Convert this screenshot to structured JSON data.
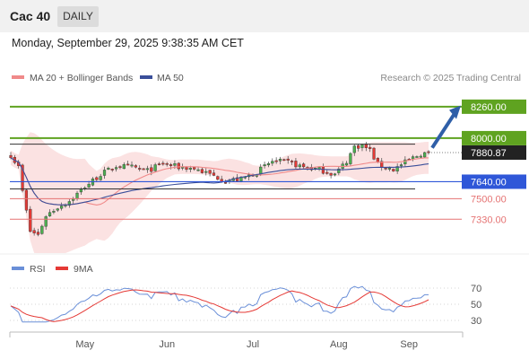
{
  "header": {
    "title": "Cac 40",
    "interval": "DAILY"
  },
  "timestamp": "Monday, September 29, 2025 9:38:35 AM CET",
  "legend": {
    "ma20": "MA 20 + Bollinger Bands",
    "ma50": "MA 50",
    "credit": "Research © 2025 Trading Central"
  },
  "colors": {
    "up": "#4caf50",
    "down": "#e53935",
    "ma20": "#f08a8a",
    "ma50": "#3a4f9a",
    "band": "#fbe2e2",
    "resistance": "#5fa320",
    "support": "#2f57d8",
    "level": "#e57373",
    "rsi": "#6a8fd8",
    "rsi_ma": "#e53935",
    "arrow": "#2f5fa8"
  },
  "chart_data": [
    {
      "type": "candlestick",
      "title": "",
      "xlabel": "",
      "ylabel": "",
      "months": [
        "May",
        "Jun",
        "Jul",
        "Aug",
        "Sep"
      ],
      "ylim": [
        7050,
        8400
      ],
      "last_price": {
        "label": "7880.87",
        "value": 7880.87
      },
      "levels": [
        {
          "value": 8260,
          "label": "8260.00",
          "kind": "resistance",
          "style": "box"
        },
        {
          "value": 8000,
          "label": "8000.00",
          "kind": "resistance",
          "style": "box"
        },
        {
          "value": 7640,
          "label": "7640.00",
          "kind": "support",
          "style": "box"
        },
        {
          "value": 7500,
          "label": "7500.00",
          "kind": "support",
          "style": "text"
        },
        {
          "value": 7330,
          "label": "7330.00",
          "kind": "support",
          "style": "text"
        }
      ],
      "indicators": [
        "MA 20 + Bollinger Bands",
        "MA 50"
      ],
      "forecast": "up toward 8260.00",
      "series": []
    },
    {
      "type": "line",
      "title": "",
      "legend": [
        "RSI",
        "9MA"
      ],
      "ylim": [
        20,
        80
      ],
      "yticks": [
        "70",
        "50",
        "30"
      ],
      "series": []
    }
  ]
}
